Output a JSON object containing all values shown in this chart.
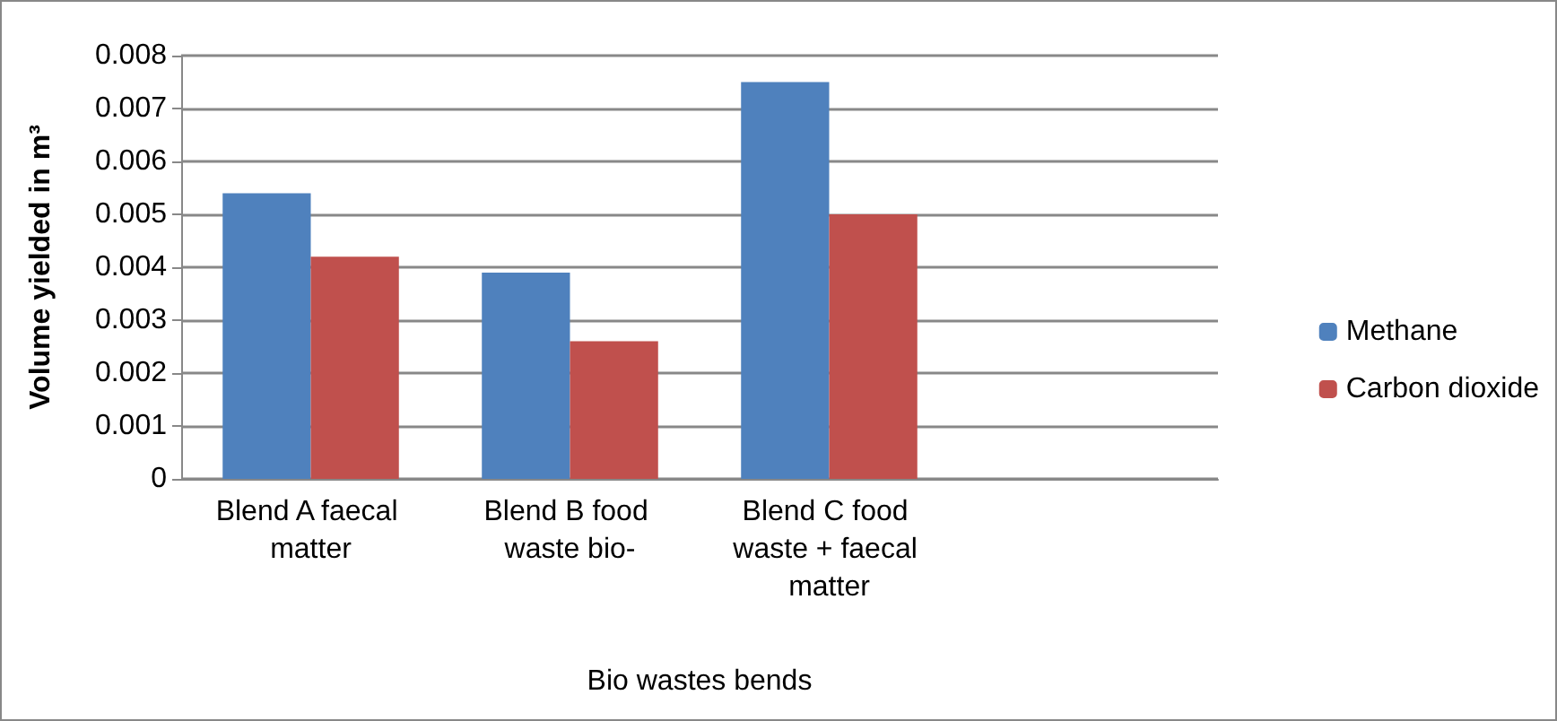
{
  "chart_data": {
    "type": "bar",
    "xlabel": "Bio wastes bends",
    "ylabel": "Volume yielded in m³",
    "categories": [
      "Blend A faecal matter",
      "Blend B food waste bio-",
      "Blend C food waste + faecal matter",
      null
    ],
    "series": [
      {
        "name": "Methane",
        "color": "#4f81bd",
        "values": [
          0.0054,
          0.0039,
          0.0075,
          null
        ]
      },
      {
        "name": "Carbon dioxide",
        "color": "#c0504d",
        "values": [
          0.0042,
          0.0026,
          0.005,
          null
        ]
      }
    ],
    "ylim": [
      0,
      0.008
    ],
    "yticks": [
      0,
      0.001,
      0.002,
      0.003,
      0.004,
      0.005,
      0.006,
      0.007,
      0.008
    ],
    "grid": "y",
    "legend": "right"
  }
}
